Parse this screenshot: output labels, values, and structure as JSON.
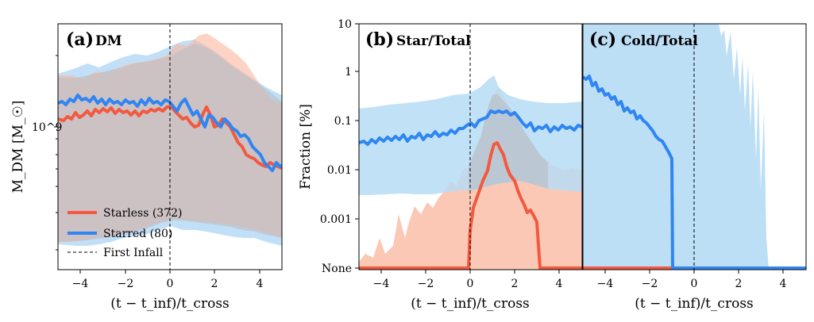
{
  "figure": {
    "xlabel": "(t − t_inf)/t_cross",
    "legend": [
      {
        "label": "Starless (372)",
        "color": "#f2593f",
        "style": "solid"
      },
      {
        "label": "Starred (80)",
        "color": "#2f86f2",
        "style": "solid"
      },
      {
        "label": "First Infall",
        "color": "#000000",
        "style": "dashed"
      }
    ],
    "colors": {
      "starless": "#f2593f",
      "starless_band": "#fbbfa8",
      "starred": "#2f86f2",
      "starred_band": "#b6dcf5",
      "overlap": "#c9c9cc"
    }
  },
  "chart_data": [
    {
      "panel": "a",
      "type": "line",
      "label": "(a)",
      "title": "DM",
      "ylabel": "M_DM [M_☉]",
      "yscale": "log",
      "xlim": [
        -5,
        5
      ],
      "xticks": [
        -4,
        -2,
        0,
        2,
        4
      ],
      "xtick_labels": [
        "−4",
        "−2",
        "0",
        "2",
        "4"
      ],
      "yticks_major": [
        1000000000
      ],
      "ytick_labels": [
        "10^9"
      ],
      "ylim": [
        200000000,
        4200000000
      ],
      "x": [
        -5,
        -4.5,
        -4,
        -3.5,
        -3,
        -2.5,
        -2,
        -1.5,
        -1,
        -0.5,
        0,
        0.5,
        1,
        1.5,
        2,
        2.5,
        3,
        3.5,
        4,
        4.5,
        5
      ],
      "series": [
        {
          "name": "Starless (372)",
          "median": [
            1150000000.0,
            1100000000.0,
            1120000000.0,
            1180000000.0,
            1180000000.0,
            1200000000.0,
            1170000000.0,
            1200000000.0,
            1150000000.0,
            1200000000.0,
            1250000000.0,
            1150000000.0,
            1050000000.0,
            1050000000.0,
            1200000000.0,
            1000000000.0,
            820000000.0,
            780000000.0,
            680000000.0,
            660000000.0,
            640000000.0
          ],
          "lower": [
            320000000.0,
            300000000.0,
            300000000.0,
            320000000.0,
            330000000.0,
            330000000.0,
            340000000.0,
            360000000.0,
            400000000.0,
            420000000.0,
            450000000.0,
            420000000.0,
            400000000.0,
            380000000.0,
            350000000.0,
            330000000.0,
            310000000.0,
            300000000.0,
            280000000.0,
            270000000.0,
            270000000.0
          ],
          "upper": [
            2500000000.0,
            2400000000.0,
            2400000000.0,
            2600000000.0,
            2700000000.0,
            2800000000.0,
            2800000000.0,
            2600000000.0,
            2800000000.0,
            2900000000.0,
            3000000000.0,
            3400000000.0,
            3400000000.0,
            3500000000.0,
            3400000000.0,
            3300000000.0,
            2900000000.0,
            2400000000.0,
            2000000000.0,
            1700000000.0,
            1500000000.0
          ]
        },
        {
          "name": "Starred (80)",
          "median": [
            1300000000.0,
            1400000000.0,
            1350000000.0,
            1300000000.0,
            1350000000.0,
            1300000000.0,
            1300000000.0,
            1380000000.0,
            1350000000.0,
            1320000000.0,
            1350000000.0,
            1200000000.0,
            1100000000.0,
            1200000000.0,
            1200000000.0,
            1100000000.0,
            950000000.0,
            850000000.0,
            750000000.0,
            680000000.0,
            660000000.0
          ],
          "lower": [
            300000000.0,
            290000000.0,
            290000000.0,
            300000000.0,
            300000000.0,
            310000000.0,
            300000000.0,
            310000000.0,
            320000000.0,
            330000000.0,
            350000000.0,
            340000000.0,
            330000000.0,
            330000000.0,
            320000000.0,
            310000000.0,
            310000000.0,
            300000000.0,
            300000000.0,
            300000000.0,
            300000000.0
          ],
          "upper": [
            2400000000.0,
            2400000000.0,
            2600000000.0,
            2500000000.0,
            2600000000.0,
            2700000000.0,
            2600000000.0,
            2700000000.0,
            2700000000.0,
            2800000000.0,
            2900000000.0,
            3000000000.0,
            2800000000.0,
            2600000000.0,
            2500000000.0,
            2300000000.0,
            2100000000.0,
            1800000000.0,
            1600000000.0,
            1400000000.0,
            1300000000.0
          ]
        }
      ]
    },
    {
      "panel": "b",
      "type": "line",
      "label": "(b)",
      "title": "Star/Total",
      "ylabel": "Fraction [%]",
      "yscale": "log",
      "xlim": [
        -5,
        5
      ],
      "xticks": [
        -4,
        -2,
        0,
        2,
        4
      ],
      "xtick_labels": [
        "−4",
        "−2",
        "0",
        "2",
        "4"
      ],
      "yticks": [
        "None",
        0.001,
        0.01,
        0.1,
        1,
        10
      ],
      "ytick_labels": [
        "None",
        "0.001",
        "0.01",
        "0.1",
        "1",
        "10"
      ],
      "x": [
        -5,
        -4.5,
        -4,
        -3.5,
        -3,
        -2.5,
        -2,
        -1.5,
        -1,
        -0.5,
        0,
        0.5,
        1,
        1.5,
        2,
        2.5,
        3,
        3.5,
        4,
        4.5,
        5
      ],
      "series": [
        {
          "name": "Starless (372)",
          "median": [
            null,
            null,
            null,
            null,
            null,
            null,
            null,
            null,
            null,
            null,
            0.0008,
            0.008,
            0.03,
            0.025,
            0.008,
            0.003,
            null,
            null,
            null,
            null,
            null
          ],
          "lower": [
            null,
            null,
            null,
            null,
            null,
            null,
            null,
            null,
            null,
            null,
            null,
            null,
            null,
            null,
            null,
            null,
            null,
            null,
            null,
            null,
            null
          ],
          "upper": [
            null,
            0.0004,
            0.001,
            0.0003,
            0.001,
            0.0008,
            0.0015,
            0.002,
            0.002,
            0.004,
            0.01,
            0.05,
            0.3,
            0.2,
            0.1,
            0.05,
            0.02,
            0.01,
            0.008,
            0.005,
            0.004
          ]
        },
        {
          "name": "Starred (80)",
          "median": [
            0.035,
            0.037,
            0.04,
            0.04,
            0.045,
            0.045,
            0.05,
            0.055,
            0.06,
            0.08,
            0.1,
            0.1,
            0.15,
            0.15,
            0.13,
            0.1,
            0.08,
            0.07,
            0.07,
            0.065,
            0.065
          ],
          "lower": [
            0.004,
            0.0035,
            0.004,
            0.004,
            0.004,
            0.0045,
            0.005,
            0.005,
            0.005,
            0.006,
            0.007,
            0.006,
            0.008,
            0.01,
            0.012,
            0.01,
            0.008,
            0.006,
            0.005,
            0.005,
            0.005
          ],
          "upper": [
            0.18,
            0.18,
            0.2,
            0.2,
            0.22,
            0.25,
            0.24,
            0.25,
            0.28,
            0.35,
            0.4,
            0.45,
            0.6,
            0.5,
            0.35,
            0.3,
            0.25,
            0.25,
            0.22,
            0.22,
            0.2
          ]
        }
      ]
    },
    {
      "panel": "c",
      "type": "line",
      "label": "(c)",
      "title": "Cold/Total",
      "yscale": "log",
      "shares_y_with": "b",
      "xlim": [
        -5,
        5
      ],
      "xticks": [
        -4,
        -2,
        0,
        2,
        4
      ],
      "xtick_labels": [
        "−4",
        "−2",
        "0",
        "2",
        "4"
      ],
      "x": [
        -5,
        -4.5,
        -4,
        -3.5,
        -3,
        -2.5,
        -2,
        -1.5,
        -1.1,
        -1,
        0,
        1,
        2,
        3,
        4,
        5
      ],
      "series": [
        {
          "name": "Starless (372)",
          "median": [
            null,
            null,
            null,
            null,
            null,
            null,
            null,
            null,
            null,
            null,
            null,
            null,
            null,
            null,
            null,
            null
          ],
          "lower": null,
          "upper": null
        },
        {
          "name": "Starred (80)",
          "median": [
            0.8,
            0.6,
            0.35,
            0.25,
            0.15,
            0.12,
            0.07,
            0.03,
            0.015,
            null,
            null,
            null,
            null,
            null,
            null,
            null
          ],
          "lower": null,
          "upper": [
            10,
            10,
            10,
            10,
            10,
            10,
            10,
            10,
            10,
            10,
            10,
            10,
            5,
            2,
            null,
            null
          ]
        }
      ]
    }
  ]
}
